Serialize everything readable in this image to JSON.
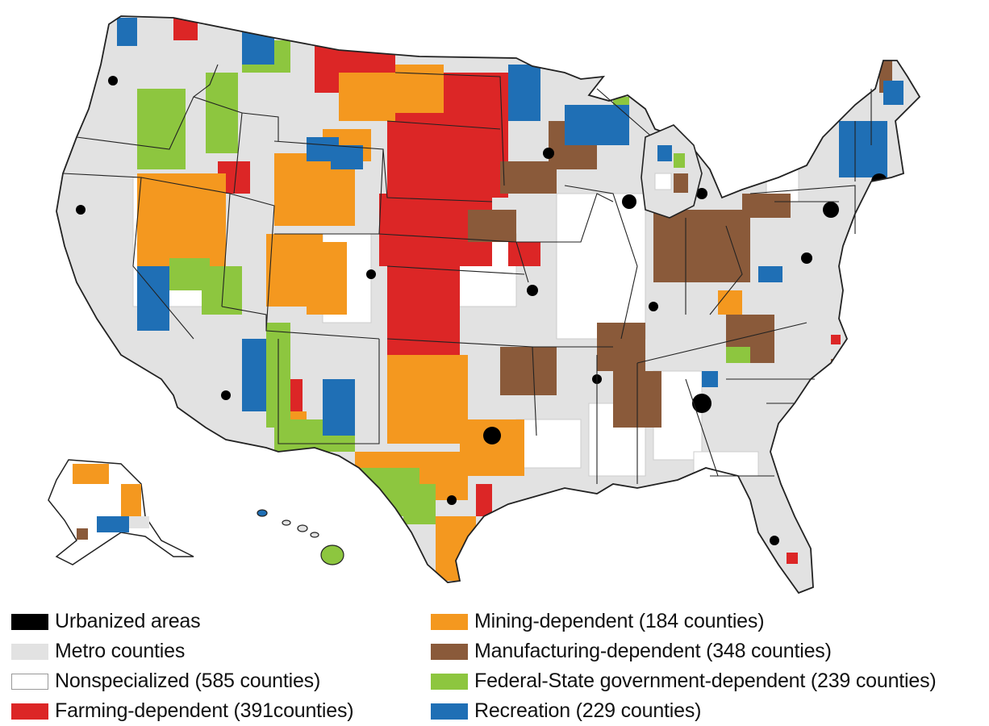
{
  "colors": {
    "urbanized": "#000000",
    "metro": "#e2e2e2",
    "nonspecialized": "#ffffff",
    "farming": "#dc2626",
    "mining": "#f4981f",
    "manufacturing": "#8a5a3a",
    "government": "#8dc63f",
    "recreation": "#1f6fb5",
    "border": "#222222"
  },
  "legend": {
    "left": [
      {
        "key": "urbanized",
        "label": "Urbanized areas",
        "color": "#000000"
      },
      {
        "key": "metro",
        "label": "Metro counties",
        "color": "#e2e2e2"
      },
      {
        "key": "nonspecialized",
        "label": "Nonspecialized (585 counties)",
        "color": "#ffffff"
      },
      {
        "key": "farming",
        "label": "Farming-dependent (391counties)",
        "color": "#dc2626"
      }
    ],
    "right": [
      {
        "key": "mining",
        "label": "Mining-dependent (184 counties)",
        "color": "#f4981f"
      },
      {
        "key": "manufacturing",
        "label": "Manufacturing-dependent (348 counties)",
        "color": "#8a5a3a"
      },
      {
        "key": "government",
        "label": "Federal-State government-dependent (239 counties)",
        "color": "#8dc63f"
      },
      {
        "key": "recreation",
        "label": "Recreation (229 counties)",
        "color": "#1f6fb5"
      }
    ]
  }
}
